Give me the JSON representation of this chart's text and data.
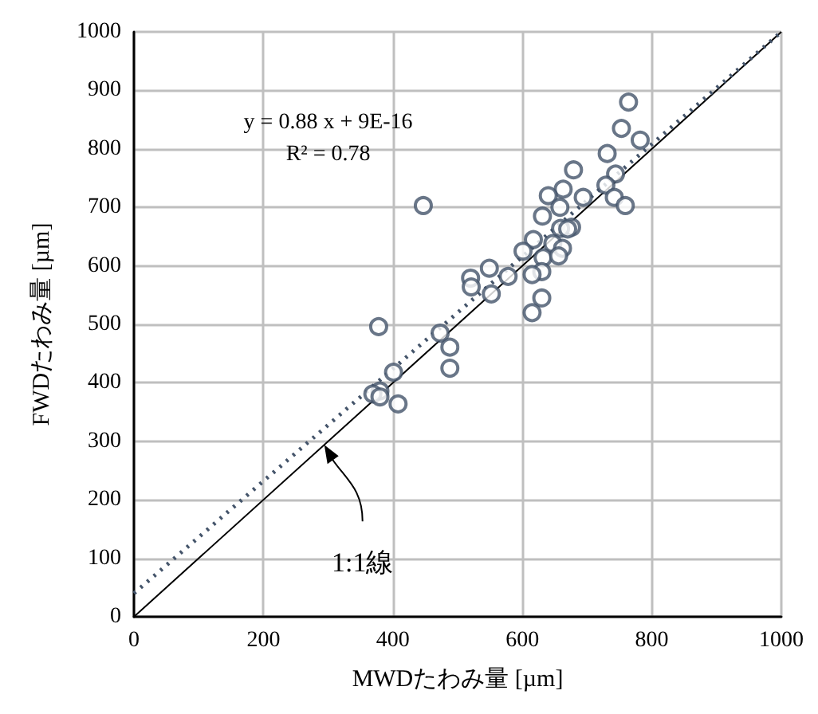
{
  "chart_data": {
    "type": "scatter",
    "xlabel": "MWDたわみ量 [µm]",
    "ylabel": "FWDたわみ量 [µm]",
    "xlim": [
      0,
      1000
    ],
    "xticks": [
      0,
      200,
      400,
      600,
      800,
      1000
    ],
    "ylim": [
      0,
      1000
    ],
    "yticks": [
      0,
      100,
      200,
      300,
      400,
      500,
      600,
      700,
      800,
      900,
      1000
    ],
    "grid": true,
    "series": [
      {
        "color": "#44546a",
        "marker": "circle",
        "x": [
          764,
          753,
          782,
          731,
          744,
          729,
          742,
          759,
          679,
          694,
          663,
          640,
          658,
          631,
          676,
          659,
          670,
          617,
          601,
          647,
          662,
          632,
          656,
          630,
          615,
          630,
          615,
          549,
          578,
          520,
          521,
          552,
          447,
          378,
          473,
          488,
          488,
          401,
          380,
          369,
          380,
          408
        ],
        "values": [
          880,
          835,
          815,
          792,
          757,
          738,
          717,
          703,
          764,
          717,
          731,
          720,
          700,
          685,
          666,
          664,
          663,
          645,
          625,
          638,
          630,
          614,
          617,
          590,
          585,
          545,
          520,
          596,
          582,
          579,
          564,
          552,
          703,
          496,
          485,
          461,
          425,
          418,
          386,
          381,
          376,
          364
        ]
      },
      {
        "type": "line",
        "color": "#000000",
        "line_style": "solid",
        "x": [
          0,
          1000
        ],
        "values": [
          0,
          1000
        ]
      },
      {
        "type": "line",
        "color": "#44546a",
        "line_style": "dotted",
        "x": [
          0,
          1000
        ],
        "values": [
          40,
          1000
        ]
      }
    ],
    "annotations": [
      "y = 0.88 x + 9E-16",
      "R² = 0.78",
      "1:1線"
    ]
  }
}
